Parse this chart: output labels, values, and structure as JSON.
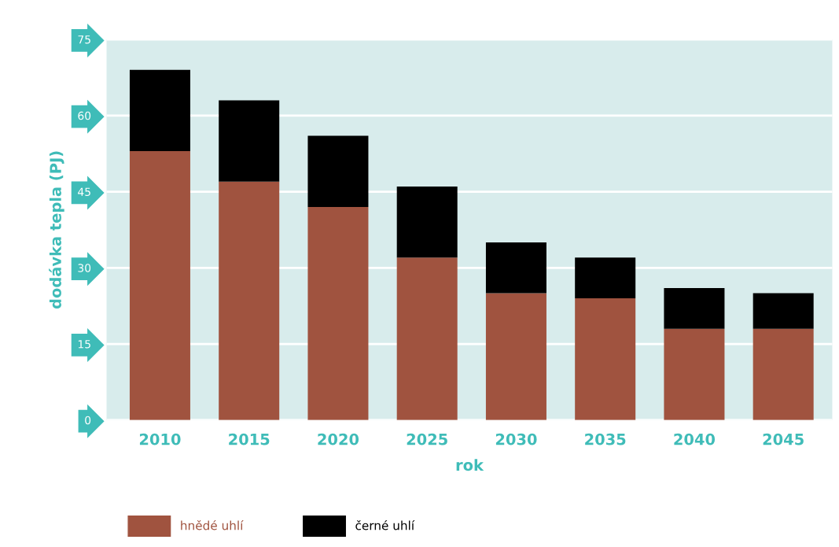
{
  "chart_data": {
    "type": "bar",
    "stacked": true,
    "xlabel": "rok",
    "ylabel": "dodávka tepla (PJ)",
    "categories": [
      "2010",
      "2015",
      "2020",
      "2025",
      "2030",
      "2035",
      "2040",
      "2045"
    ],
    "series": [
      {
        "name": "hnědé uhlí",
        "color": "#a0533f",
        "values": [
          53,
          47,
          42,
          32,
          25,
          24,
          18,
          18
        ]
      },
      {
        "name": "černé uhlí",
        "color": "#000000",
        "values": [
          16,
          16,
          14,
          14,
          10,
          8,
          8,
          7
        ]
      }
    ],
    "ylim": [
      0,
      75
    ],
    "yticks": [
      0,
      15,
      30,
      45,
      60,
      75
    ],
    "grid": "y",
    "legend": "bottom"
  }
}
